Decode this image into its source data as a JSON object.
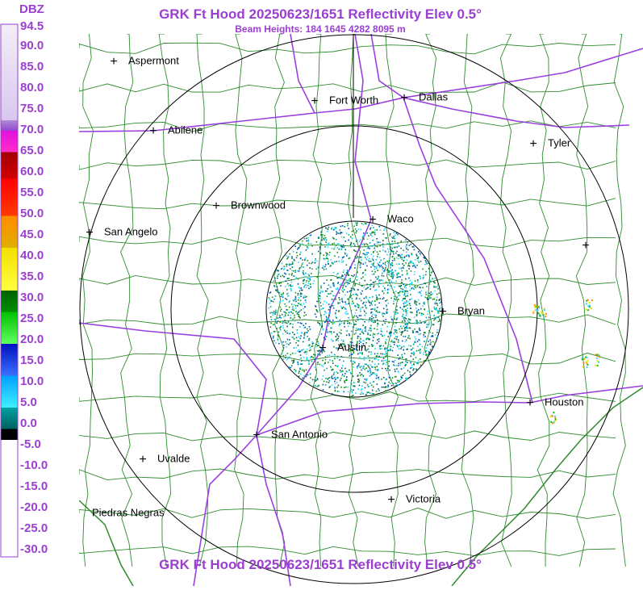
{
  "title": "GRK Ft Hood 20250623/1651 Reflectivity Elev 0.5°",
  "subtitle": "Beam Heights: 184 1645 4282 8095 m",
  "legend": {
    "unit": "DBZ",
    "labels": [
      "94.5",
      "90.0",
      "85.0",
      "80.0",
      "75.0",
      "70.0",
      "65.0",
      "60.0",
      "55.0",
      "50.0",
      "45.0",
      "40.0",
      "35.0",
      "30.0",
      "25.0",
      "20.0",
      "15.0",
      "10.0",
      "5.0",
      "0.0",
      "-5.0",
      "-10.0",
      "-15.0",
      "-20.0",
      "-25.0",
      "-30.0"
    ]
  },
  "cities": [
    "Aspermont",
    "Fort Worth",
    "Dallas",
    "Abilene",
    "Tyler",
    "Brownwood",
    "Waco",
    "San Angelo",
    "Bryan",
    "Austin",
    "Houston",
    "San Antonio",
    "Uvalde",
    "Piedras Negras",
    "Victoria"
  ],
  "footer": "GRK Ft Hood 20250623/1651 Reflectivity Elev 0.5°"
}
